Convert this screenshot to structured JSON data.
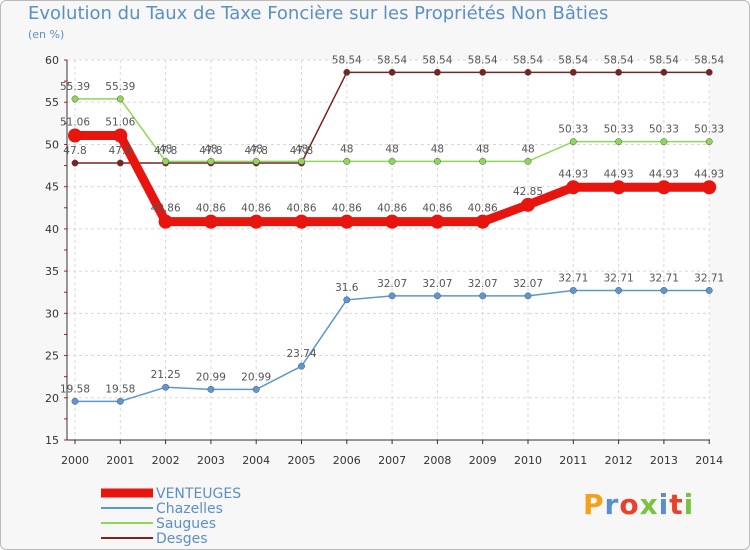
{
  "header": {
    "title": "Evolution du Taux de Taxe Foncière sur les Propriétés Non Bâties",
    "unit": "(en %)"
  },
  "logo": {
    "text": "Proxiti",
    "colors": [
      "#f4a11d",
      "#5b8fc7",
      "#e8422b",
      "#7cc242",
      "#5b8fc7",
      "#e8422b",
      "#7cc242"
    ]
  },
  "chart_data": {
    "type": "line",
    "title": "Evolution du Taux de Taxe Foncière sur les Propriétés Non Bâties",
    "ylabel": "(en %)",
    "xlabel": "",
    "ylim": [
      15,
      60
    ],
    "yticks": [
      15,
      20,
      25,
      30,
      35,
      40,
      45,
      50,
      55,
      60
    ],
    "categories": [
      "2000",
      "2001",
      "2002",
      "2003",
      "2004",
      "2005",
      "2006",
      "2007",
      "2008",
      "2009",
      "2010",
      "2011",
      "2012",
      "2013",
      "2014"
    ],
    "legend_position": "bottom-left",
    "series": [
      {
        "name": "VENTEUGES",
        "color": "#e8150f",
        "values": [
          51.06,
          51.06,
          40.86,
          40.86,
          40.86,
          40.86,
          40.86,
          40.86,
          40.86,
          40.86,
          42.85,
          44.93,
          44.93,
          44.93,
          44.93
        ],
        "labels": [
          "51.06",
          "51.06",
          "40.86",
          "40.86",
          "40.86",
          "40.86",
          "40.86",
          "40.86",
          "40.86",
          "40.86",
          "42.85",
          "44.93",
          "44.93",
          "44.93",
          "44.93"
        ]
      },
      {
        "name": "Chazelles",
        "color": "#5b98cf",
        "values": [
          19.58,
          19.58,
          21.25,
          20.99,
          20.99,
          23.74,
          31.6,
          32.07,
          32.07,
          32.07,
          32.07,
          32.71,
          32.71,
          32.71,
          32.71
        ],
        "labels": [
          "19.58",
          "19.58",
          "21.25",
          "20.99",
          "20.99",
          "23.74",
          "31.6",
          "32.07",
          "32.07",
          "32.07",
          "32.07",
          "32.71",
          "32.71",
          "32.71",
          "32.71"
        ]
      },
      {
        "name": "Saugues",
        "color": "#8fd857",
        "values": [
          55.39,
          55.39,
          48,
          48,
          48,
          48,
          48,
          48,
          48,
          48,
          48,
          50.33,
          50.33,
          50.33,
          50.33
        ],
        "labels": [
          "55.39",
          "55.39",
          "48",
          "48",
          "48",
          "48",
          "48",
          "48",
          "48",
          "48",
          "48",
          "50.33",
          "50.33",
          "50.33",
          "50.33"
        ]
      },
      {
        "name": "Desges",
        "color": "#7b2222",
        "values": [
          47.8,
          47.8,
          47.8,
          47.8,
          47.8,
          47.8,
          58.54,
          58.54,
          58.54,
          58.54,
          58.54,
          58.54,
          58.54,
          58.54,
          58.54
        ],
        "labels": [
          "47.8",
          "47.8",
          "47.8",
          "47.8",
          "47.8",
          "47.8",
          "58.54",
          "58.54",
          "58.54",
          "58.54",
          "58.54",
          "58.54",
          "58.54",
          "58.54",
          "58.54"
        ]
      }
    ]
  }
}
